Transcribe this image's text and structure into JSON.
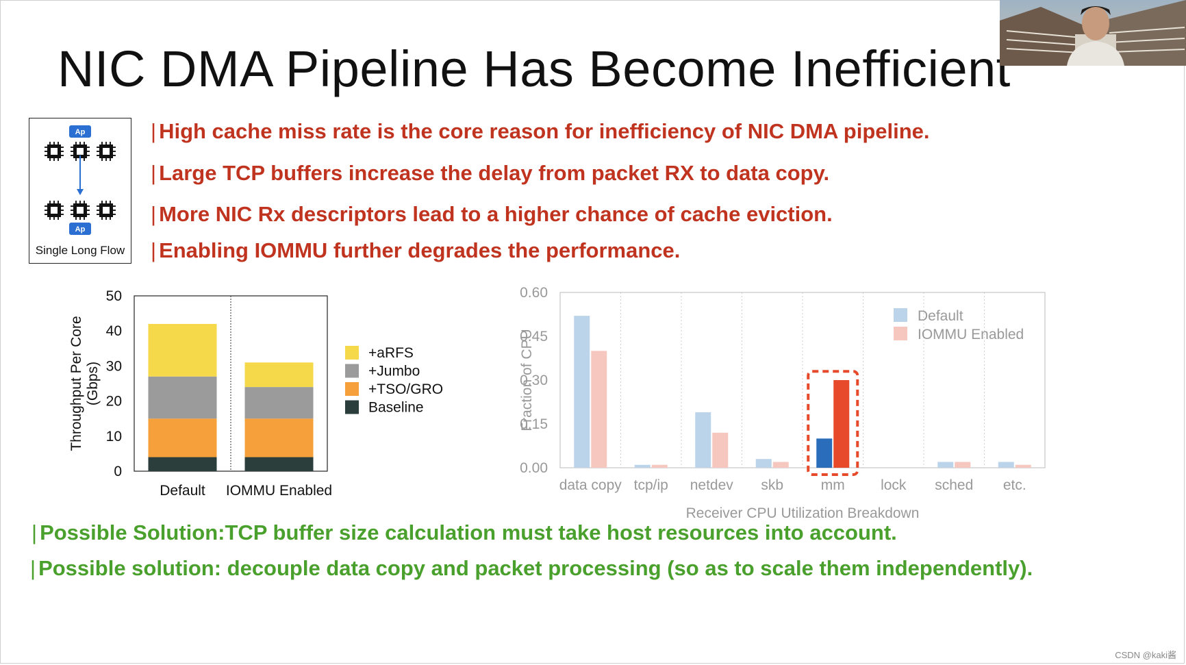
{
  "slide": {
    "title": "NIC DMA Pipeline Has Become Inefficient",
    "diagram_caption": "Single Long Flow",
    "diagram_app_label": "Ap",
    "bullets_red": [
      "High cache miss rate is the core reason for inefficiency of NIC DMA pipeline.",
      "Large TCP buffers increase the delay from packet RX to data copy.",
      "More NIC Rx descriptors lead to a higher chance of cache eviction.",
      "Enabling IOMMU further degrades the performance."
    ],
    "bullets_green": [
      "Possible Solution:TCP buffer size calculation must take host resources into account.",
      "Possible solution: decouple data copy and packet processing (so as to scale them independently)."
    ],
    "bullet_marker": "|",
    "watermark": "CSDN @kaki酱"
  },
  "chart_data": [
    {
      "type": "bar",
      "stacked": true,
      "categories": [
        "Default",
        "IOMMU Enabled"
      ],
      "ylabel": "Throughput Per Core\n(Gbps)",
      "ylim": [
        0,
        50
      ],
      "yticks": [
        0,
        10,
        20,
        30,
        40,
        50
      ],
      "legend_position": "right",
      "series": [
        {
          "name": "Baseline",
          "values": [
            4,
            4
          ],
          "color": "#2c3e3c"
        },
        {
          "name": "+TSO/GRO",
          "values": [
            11,
            11
          ],
          "color": "#f5a03a"
        },
        {
          "name": "+Jumbo",
          "values": [
            12,
            9
          ],
          "color": "#9b9b9b"
        },
        {
          "name": "+aRFS",
          "values": [
            15,
            7
          ],
          "color": "#f6d84b"
        }
      ],
      "legend_order": [
        "+aRFS",
        "+Jumbo",
        "+TSO/GRO",
        "Baseline"
      ]
    },
    {
      "type": "bar",
      "categories": [
        "data copy",
        "tcp/ip",
        "netdev",
        "skb",
        "mm",
        "lock",
        "sched",
        "etc."
      ],
      "xlabel": "Receiver CPU Utilization Breakdown",
      "ylabel": "Fraction of CPU",
      "ylim": [
        0,
        0.6
      ],
      "yticks": [
        "0.00",
        "0.15",
        "0.30",
        "0.45",
        "0.60"
      ],
      "legend_position": "top-right",
      "highlight_category": "mm",
      "series": [
        {
          "name": "Default",
          "values": [
            0.52,
            0.01,
            0.19,
            0.03,
            0.1,
            0.0,
            0.02,
            0.02
          ],
          "color": "#bcd4ea",
          "highlight_color": "#2a6ebb"
        },
        {
          "name": "IOMMU Enabled",
          "values": [
            0.4,
            0.01,
            0.12,
            0.02,
            0.3,
            0.0,
            0.02,
            0.01
          ],
          "color": "#f6c7bf",
          "highlight_color": "#e64a2b"
        }
      ]
    }
  ]
}
